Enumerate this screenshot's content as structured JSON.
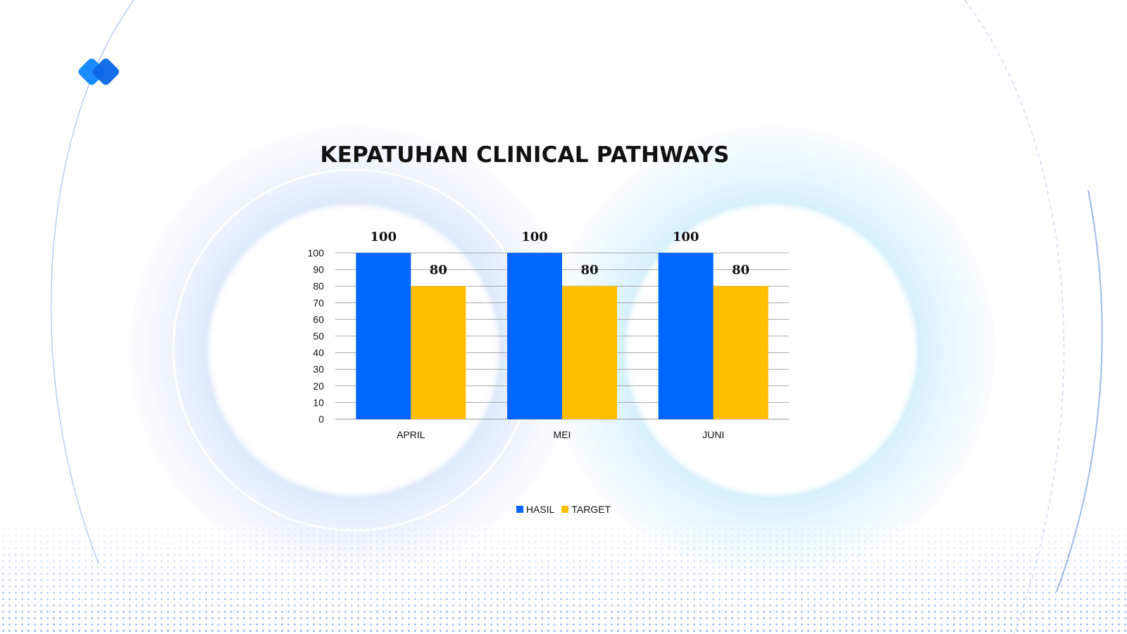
{
  "colors": {
    "hasil": "#0066ff",
    "target": "#ffbf00",
    "gridline": "#a6a6a6"
  },
  "chart_data": {
    "type": "bar",
    "title": "KEPATUHAN CLINICAL PATHWAYS",
    "categories": [
      "APRIL",
      "MEI",
      "JUNI"
    ],
    "series": [
      {
        "name": "HASIL",
        "values": [
          100,
          100,
          100
        ]
      },
      {
        "name": "TARGET",
        "values": [
          80,
          80,
          80
        ]
      }
    ],
    "ylim": [
      0,
      100
    ],
    "yticks": [
      0,
      10,
      20,
      30,
      40,
      50,
      60,
      70,
      80,
      90,
      100
    ],
    "xlabel": "",
    "ylabel": "",
    "grid": true,
    "legend": "bottom"
  }
}
